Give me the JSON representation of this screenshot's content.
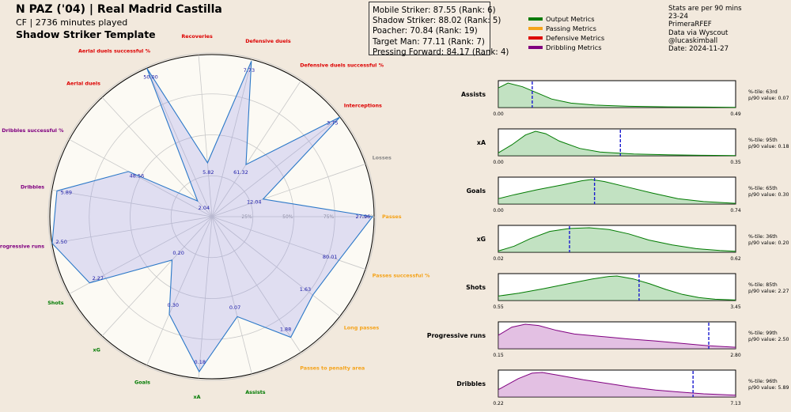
{
  "header": {
    "title": "N PAZ ('04) | Real Madrid Castilla",
    "subtitle": "CF | 2736 minutes played",
    "template": "Shadow Striker Template"
  },
  "ranks_box": [
    "Mobile Striker: 87.55 (Rank: 6)",
    "Shadow Striker: 88.02 (Rank: 5)",
    "Poacher: 70.84 (Rank: 19)",
    "Target Man: 77.11 (Rank: 7)",
    "Pressing Forward: 84.17 (Rank: 4)"
  ],
  "legend": [
    {
      "label": "Output Metrics",
      "color": "#007a00"
    },
    {
      "label": "Passing Metrics",
      "color": "#f5a31a"
    },
    {
      "label": "Defensive Metrics",
      "color": "#dd0000"
    },
    {
      "label": "Dribbling Metrics",
      "color": "#800080"
    }
  ],
  "info": [
    "Stats are per 90 mins",
    "23-24",
    "PrimeraRFEF",
    "Data via Wyscout",
    "@lucaskimball",
    "Date: 2024-11-27"
  ],
  "colors": {
    "output": "#007a00",
    "passing": "#f5a31a",
    "defensive": "#dd0000",
    "dribbling": "#800080",
    "other": "#888888"
  },
  "chart_data": [
    {
      "type": "radar",
      "ring_labels": [
        "25%",
        "50%",
        "75%",
        "100%"
      ],
      "metrics": [
        {
          "name": "Passes",
          "group": "passing",
          "percentile": 98,
          "value": "27.96"
        },
        {
          "name": "Losses",
          "group": "other",
          "percentile": 33,
          "value": "12.04"
        },
        {
          "name": "Interceptions",
          "group": "defensive",
          "percentile": 99,
          "value": "3.75"
        },
        {
          "name": "Defensive duels successful %",
          "group": "defensive",
          "percentile": 38,
          "value": "61.32"
        },
        {
          "name": "Defensive duels",
          "group": "defensive",
          "percentile": 98,
          "value": "7.73"
        },
        {
          "name": "Recoveries",
          "group": "defensive",
          "percentile": 33,
          "value": "5.82"
        },
        {
          "name": "Aerial duels successful %",
          "group": "defensive",
          "percentile": 99,
          "value": "50.00"
        },
        {
          "name": "Aerial duels",
          "group": "defensive",
          "percentile": 13,
          "value": "2.04"
        },
        {
          "name": "Dribbles successful %",
          "group": "dribbling",
          "percentile": 58,
          "value": "48.56"
        },
        {
          "name": "Dribbles",
          "group": "dribbling",
          "percentile": 96,
          "value": "5.89"
        },
        {
          "name": "Progressive runs",
          "group": "dribbling",
          "percentile": 99,
          "value": "2.50"
        },
        {
          "name": "Shots",
          "group": "output",
          "percentile": 85,
          "value": "2.27"
        },
        {
          "name": "xG",
          "group": "output",
          "percentile": 36,
          "value": "0.20"
        },
        {
          "name": "Goals",
          "group": "output",
          "percentile": 65,
          "value": "0.30"
        },
        {
          "name": "xA",
          "group": "output",
          "percentile": 95,
          "value": "0.18"
        },
        {
          "name": "Assists",
          "group": "output",
          "percentile": 63,
          "value": "0.07"
        },
        {
          "name": "Passes to penalty area",
          "group": "passing",
          "percentile": 88,
          "value": "1.88"
        },
        {
          "name": "Long passes",
          "group": "passing",
          "percentile": 78,
          "value": "1.63"
        },
        {
          "name": "Passes successful %",
          "group": "passing",
          "percentile": 82,
          "value": "80.01"
        }
      ]
    },
    {
      "type": "density",
      "panels": [
        {
          "name": "Assists",
          "group": "output",
          "xmin": "0.00",
          "xmax": "0.49",
          "min": 0,
          "max": 0.49,
          "player": 0.07,
          "percentile": "%-tile: 63rd",
          "p90": "p/90 value: 0.07",
          "curve": [
            [
              0,
              0.8
            ],
            [
              0.02,
              1.0
            ],
            [
              0.05,
              0.85
            ],
            [
              0.08,
              0.6
            ],
            [
              0.11,
              0.35
            ],
            [
              0.15,
              0.18
            ],
            [
              0.2,
              0.1
            ],
            [
              0.27,
              0.05
            ],
            [
              0.35,
              0.03
            ],
            [
              0.42,
              0.02
            ],
            [
              0.49,
              0.01
            ]
          ]
        },
        {
          "name": "xA",
          "group": "output",
          "xmin": "0.00",
          "xmax": "0.35",
          "min": 0,
          "max": 0.35,
          "player": 0.18,
          "percentile": "%-tile: 95th",
          "p90": "p/90 value: 0.18",
          "curve": [
            [
              0,
              0.12
            ],
            [
              0.02,
              0.45
            ],
            [
              0.04,
              0.85
            ],
            [
              0.055,
              1.0
            ],
            [
              0.07,
              0.9
            ],
            [
              0.09,
              0.6
            ],
            [
              0.12,
              0.3
            ],
            [
              0.15,
              0.15
            ],
            [
              0.2,
              0.07
            ],
            [
              0.25,
              0.04
            ],
            [
              0.3,
              0.02
            ],
            [
              0.35,
              0.01
            ]
          ]
        },
        {
          "name": "Goals",
          "group": "output",
          "xmin": "0.00",
          "xmax": "0.74",
          "min": 0,
          "max": 0.74,
          "player": 0.3,
          "percentile": "%-tile: 65th",
          "p90": "p/90 value: 0.30",
          "curve": [
            [
              0,
              0.22
            ],
            [
              0.05,
              0.38
            ],
            [
              0.12,
              0.58
            ],
            [
              0.2,
              0.78
            ],
            [
              0.26,
              0.95
            ],
            [
              0.29,
              1.0
            ],
            [
              0.33,
              0.92
            ],
            [
              0.4,
              0.7
            ],
            [
              0.48,
              0.45
            ],
            [
              0.56,
              0.22
            ],
            [
              0.64,
              0.1
            ],
            [
              0.74,
              0.03
            ]
          ]
        },
        {
          "name": "xG",
          "group": "output",
          "xmin": "0.02",
          "xmax": "0.62",
          "min": 0.02,
          "max": 0.62,
          "player": 0.2,
          "percentile": "%-tile: 36th",
          "p90": "p/90 value: 0.20",
          "curve": [
            [
              0.02,
              0.05
            ],
            [
              0.06,
              0.25
            ],
            [
              0.1,
              0.55
            ],
            [
              0.15,
              0.85
            ],
            [
              0.2,
              0.97
            ],
            [
              0.25,
              1.0
            ],
            [
              0.3,
              0.93
            ],
            [
              0.35,
              0.75
            ],
            [
              0.4,
              0.5
            ],
            [
              0.46,
              0.3
            ],
            [
              0.52,
              0.15
            ],
            [
              0.58,
              0.07
            ],
            [
              0.62,
              0.04
            ]
          ]
        },
        {
          "name": "Shots",
          "group": "output",
          "xmin": "0.55",
          "xmax": "3.45",
          "min": 0.55,
          "max": 3.45,
          "player": 2.27,
          "percentile": "%-tile: 85th",
          "p90": "p/90 value: 2.27",
          "curve": [
            [
              0.55,
              0.18
            ],
            [
              0.8,
              0.3
            ],
            [
              1.1,
              0.48
            ],
            [
              1.4,
              0.68
            ],
            [
              1.7,
              0.88
            ],
            [
              1.9,
              0.98
            ],
            [
              2.0,
              1.0
            ],
            [
              2.2,
              0.88
            ],
            [
              2.4,
              0.68
            ],
            [
              2.6,
              0.45
            ],
            [
              2.8,
              0.25
            ],
            [
              3.0,
              0.12
            ],
            [
              3.2,
              0.05
            ],
            [
              3.45,
              0.02
            ]
          ]
        },
        {
          "name": "Progressive runs",
          "group": "dribbling",
          "xmin": "0.15",
          "xmax": "2.80",
          "min": 0.15,
          "max": 2.8,
          "player": 2.5,
          "percentile": "%-tile: 99th",
          "p90": "p/90 value: 2.50",
          "curve": [
            [
              0.15,
              0.55
            ],
            [
              0.3,
              0.88
            ],
            [
              0.45,
              1.0
            ],
            [
              0.6,
              0.95
            ],
            [
              0.8,
              0.75
            ],
            [
              1.0,
              0.6
            ],
            [
              1.3,
              0.5
            ],
            [
              1.6,
              0.4
            ],
            [
              1.9,
              0.32
            ],
            [
              2.2,
              0.22
            ],
            [
              2.5,
              0.12
            ],
            [
              2.8,
              0.06
            ]
          ]
        },
        {
          "name": "Dribbles",
          "group": "dribbling",
          "xmin": "0.22",
          "xmax": "7.13",
          "min": 0.22,
          "max": 7.13,
          "player": 5.89,
          "percentile": "%-tile: 96th",
          "p90": "p/90 value: 5.89",
          "curve": [
            [
              0.22,
              0.3
            ],
            [
              0.8,
              0.75
            ],
            [
              1.2,
              0.97
            ],
            [
              1.5,
              1.0
            ],
            [
              2.0,
              0.88
            ],
            [
              2.7,
              0.7
            ],
            [
              3.4,
              0.55
            ],
            [
              4.1,
              0.4
            ],
            [
              4.8,
              0.28
            ],
            [
              5.5,
              0.2
            ],
            [
              6.2,
              0.13
            ],
            [
              7.13,
              0.07
            ]
          ]
        }
      ]
    }
  ]
}
